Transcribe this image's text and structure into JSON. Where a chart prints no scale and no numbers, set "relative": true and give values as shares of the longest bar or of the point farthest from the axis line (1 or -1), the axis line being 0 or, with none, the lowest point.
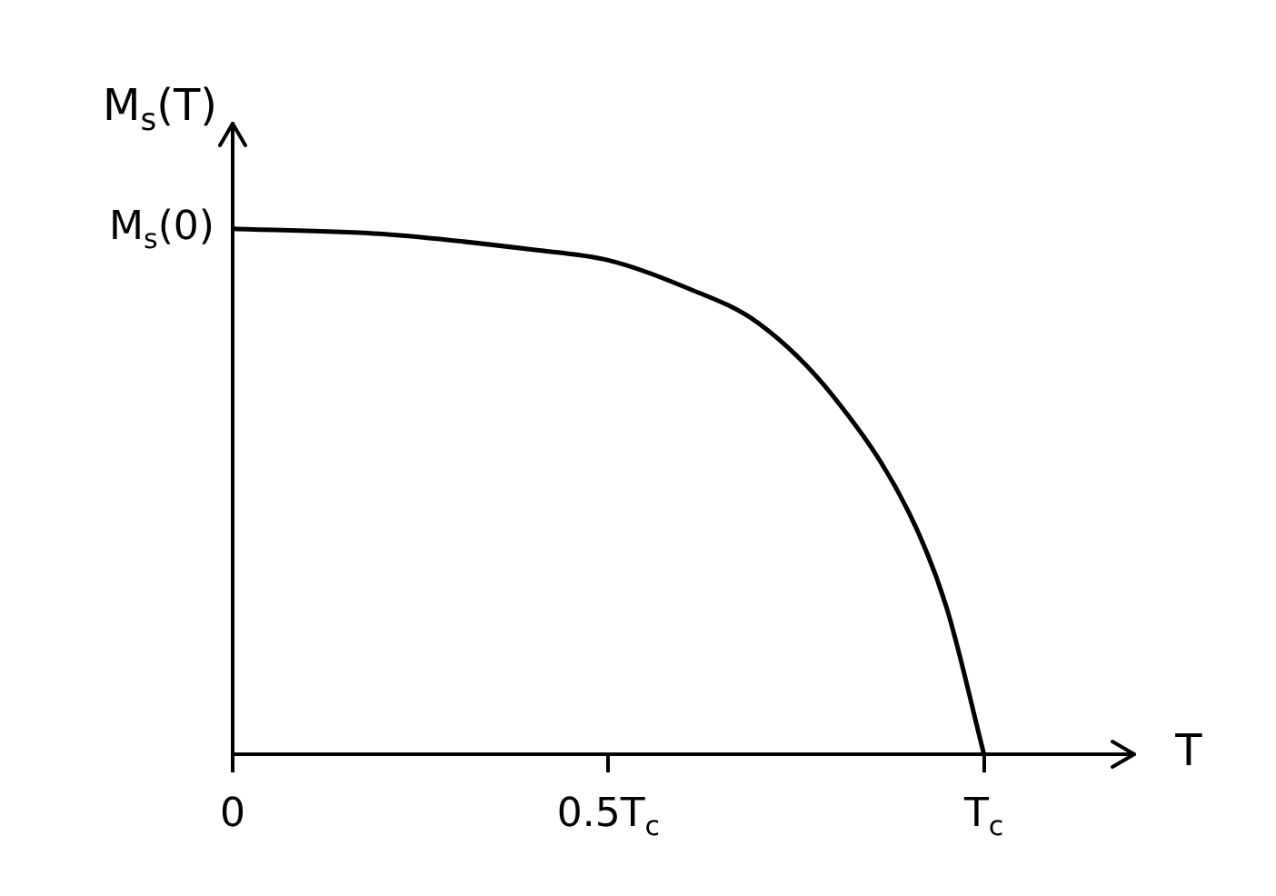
{
  "chart_data": {
    "type": "line",
    "relative": true,
    "ylabel": "M$_{s}$(T)",
    "xlabel": "T",
    "x": [
      0,
      0.2,
      0.4,
      0.5,
      0.6,
      0.7,
      0.8,
      0.9,
      0.95,
      1
    ],
    "series": [
      {
        "color": "#000000",
        "values": [
          1,
          0.99,
          0.96,
          0.94,
          0.89,
          0.82,
          0.68,
          0.46,
          0.28,
          0
        ]
      }
    ],
    "xlim": [
      0,
      1.2
    ],
    "xticks": [
      {
        "value": 0,
        "label": "0"
      },
      {
        "value": 0.5,
        "label": "0.5T$_{c}$"
      },
      {
        "value": 1,
        "label": "T$_{c}$"
      }
    ],
    "annotations": [
      {
        "text": "M$_{s}$(0)",
        "x": 0,
        "y": 1
      }
    ],
    "grid": false,
    "legend": false,
    "marker": "none",
    "line_style": "solid"
  }
}
